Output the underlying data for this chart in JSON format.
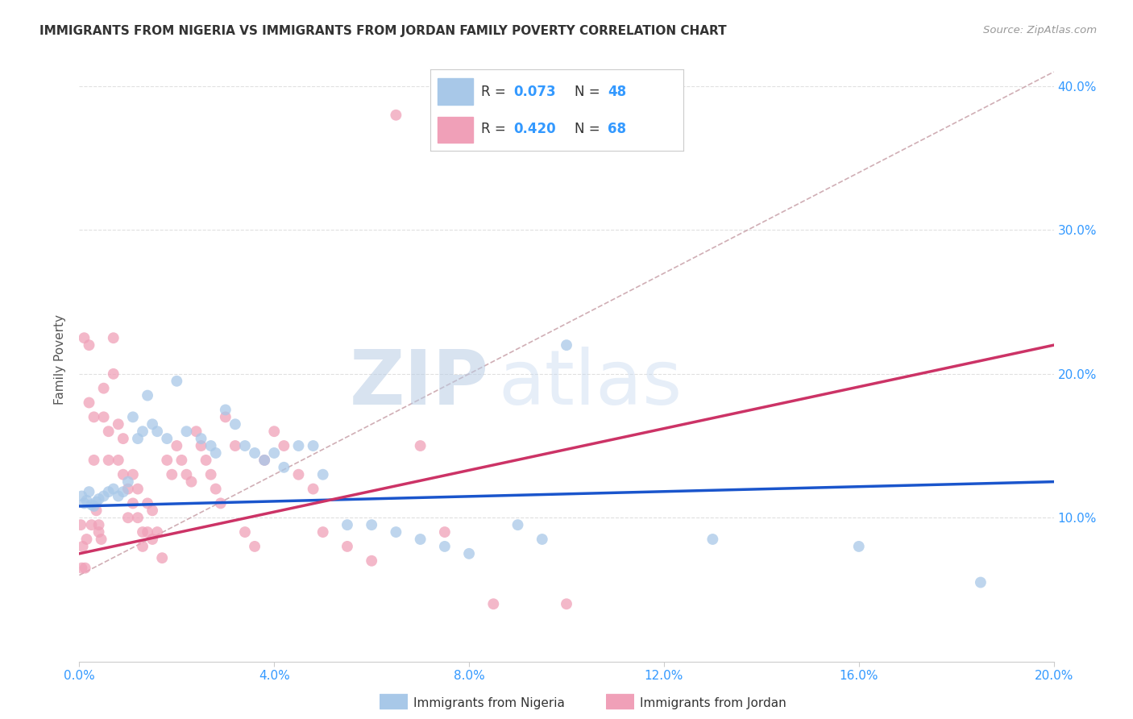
{
  "title": "IMMIGRANTS FROM NIGERIA VS IMMIGRANTS FROM JORDAN FAMILY POVERTY CORRELATION CHART",
  "source": "Source: ZipAtlas.com",
  "ylabel": "Family Poverty",
  "legend_label_1": "Immigrants from Nigeria",
  "legend_label_2": "Immigrants from Jordan",
  "R_nigeria": 0.073,
  "N_nigeria": 48,
  "R_jordan": 0.42,
  "N_jordan": 68,
  "color_nigeria": "#a8c8e8",
  "color_jordan": "#f0a0b8",
  "line_color_nigeria": "#1a55cc",
  "line_color_jordan": "#cc3366",
  "dashed_line_color": "#c8a0a8",
  "xmin": 0.0,
  "xmax": 0.2,
  "ymin": 0.0,
  "ymax": 0.42,
  "x_ticks": [
    0.0,
    0.04,
    0.08,
    0.12,
    0.16,
    0.2
  ],
  "y_ticks": [
    0.1,
    0.2,
    0.3,
    0.4
  ],
  "nigeria_x": [
    0.0005,
    0.001,
    0.0015,
    0.002,
    0.0025,
    0.003,
    0.0035,
    0.004,
    0.005,
    0.006,
    0.007,
    0.008,
    0.009,
    0.01,
    0.011,
    0.012,
    0.013,
    0.014,
    0.015,
    0.016,
    0.018,
    0.02,
    0.022,
    0.025,
    0.027,
    0.028,
    0.03,
    0.032,
    0.034,
    0.036,
    0.038,
    0.04,
    0.042,
    0.045,
    0.048,
    0.05,
    0.055,
    0.06,
    0.065,
    0.07,
    0.075,
    0.08,
    0.09,
    0.095,
    0.1,
    0.13,
    0.16,
    0.185
  ],
  "nigeria_y": [
    0.115,
    0.11,
    0.112,
    0.118,
    0.109,
    0.108,
    0.111,
    0.113,
    0.115,
    0.118,
    0.12,
    0.115,
    0.118,
    0.125,
    0.17,
    0.155,
    0.16,
    0.185,
    0.165,
    0.16,
    0.155,
    0.195,
    0.16,
    0.155,
    0.15,
    0.145,
    0.175,
    0.165,
    0.15,
    0.145,
    0.14,
    0.145,
    0.135,
    0.15,
    0.15,
    0.13,
    0.095,
    0.095,
    0.09,
    0.085,
    0.08,
    0.075,
    0.095,
    0.085,
    0.22,
    0.085,
    0.08,
    0.055
  ],
  "jordan_x": [
    0.0003,
    0.0005,
    0.0007,
    0.001,
    0.0012,
    0.0015,
    0.002,
    0.002,
    0.0025,
    0.003,
    0.003,
    0.0035,
    0.004,
    0.004,
    0.0045,
    0.005,
    0.005,
    0.006,
    0.006,
    0.007,
    0.007,
    0.008,
    0.008,
    0.009,
    0.009,
    0.01,
    0.01,
    0.011,
    0.011,
    0.012,
    0.012,
    0.013,
    0.013,
    0.014,
    0.014,
    0.015,
    0.015,
    0.016,
    0.017,
    0.018,
    0.019,
    0.02,
    0.021,
    0.022,
    0.023,
    0.024,
    0.025,
    0.026,
    0.027,
    0.028,
    0.029,
    0.03,
    0.032,
    0.034,
    0.036,
    0.038,
    0.04,
    0.042,
    0.045,
    0.048,
    0.05,
    0.055,
    0.06,
    0.065,
    0.07,
    0.075,
    0.085,
    0.1
  ],
  "jordan_y": [
    0.095,
    0.065,
    0.08,
    0.225,
    0.065,
    0.085,
    0.22,
    0.18,
    0.095,
    0.17,
    0.14,
    0.105,
    0.095,
    0.09,
    0.085,
    0.19,
    0.17,
    0.16,
    0.14,
    0.225,
    0.2,
    0.165,
    0.14,
    0.155,
    0.13,
    0.12,
    0.1,
    0.13,
    0.11,
    0.12,
    0.1,
    0.09,
    0.08,
    0.11,
    0.09,
    0.105,
    0.085,
    0.09,
    0.072,
    0.14,
    0.13,
    0.15,
    0.14,
    0.13,
    0.125,
    0.16,
    0.15,
    0.14,
    0.13,
    0.12,
    0.11,
    0.17,
    0.15,
    0.09,
    0.08,
    0.14,
    0.16,
    0.15,
    0.13,
    0.12,
    0.09,
    0.08,
    0.07,
    0.38,
    0.15,
    0.09,
    0.04,
    0.04
  ],
  "watermark_zip": "ZIP",
  "watermark_atlas": "atlas",
  "background_color": "#ffffff",
  "grid_color": "#dddddd"
}
